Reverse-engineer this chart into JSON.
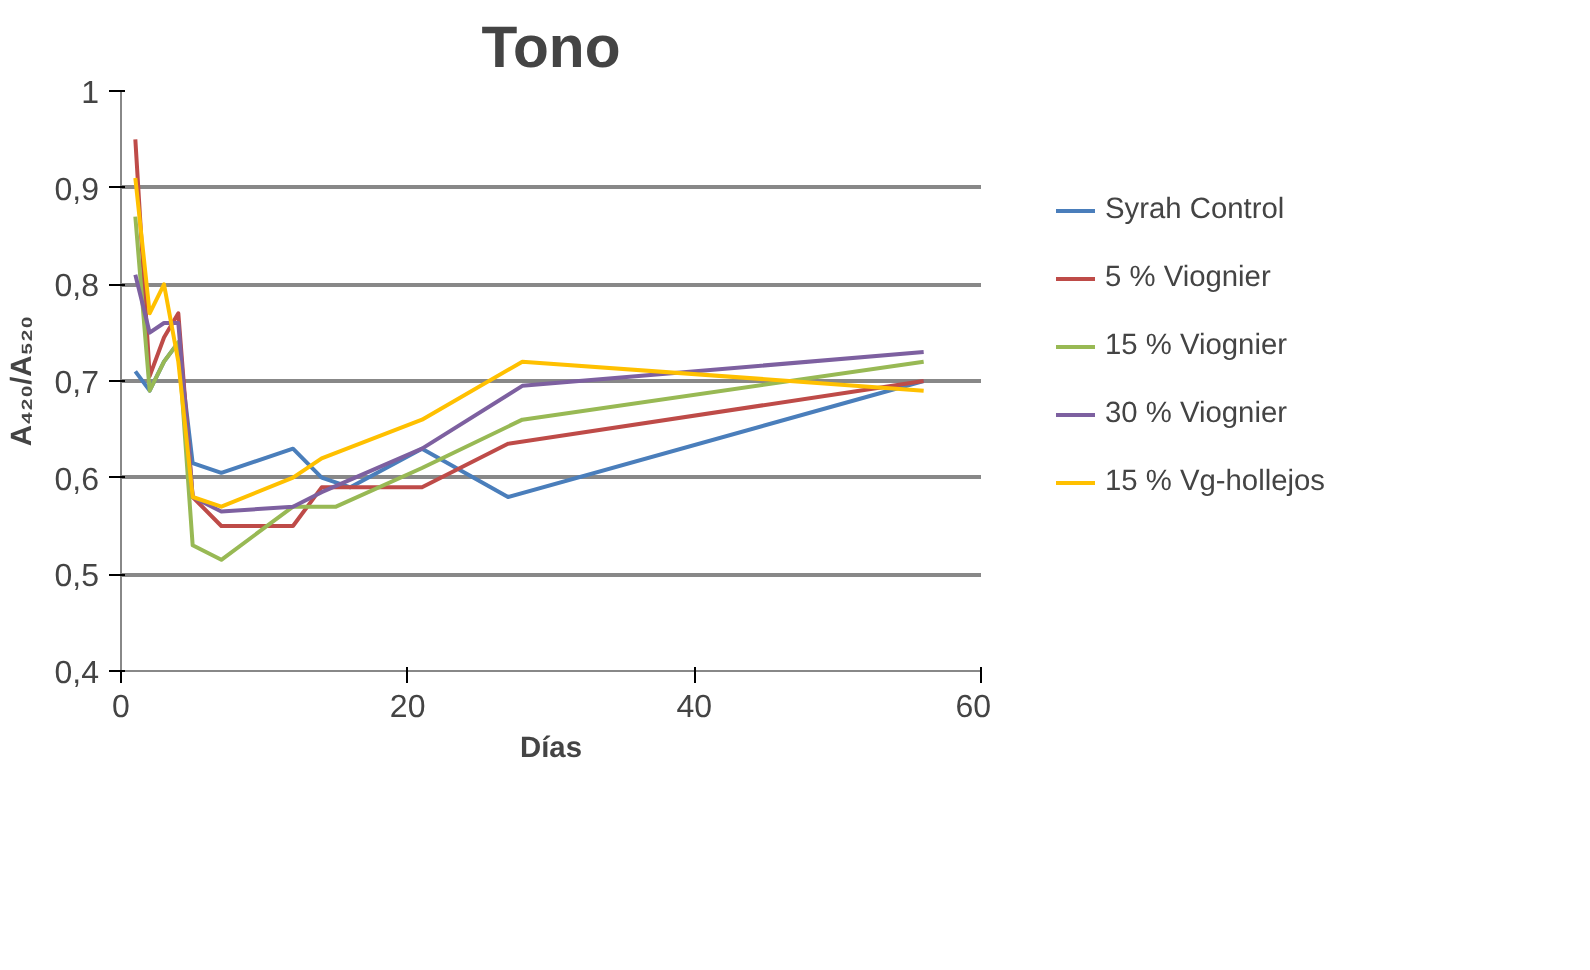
{
  "chart_data": {
    "type": "line",
    "title": "Tono",
    "xlabel": "Días",
    "ylabel": "A₄₂₀/A₅₂₀",
    "xlim": [
      0,
      60
    ],
    "xticks": [
      0,
      20,
      40,
      60
    ],
    "ylim": [
      0.4,
      1
    ],
    "yticks": [
      {
        "value": 0.4,
        "label": "0,4"
      },
      {
        "value": 0.5,
        "label": "0,5"
      },
      {
        "value": 0.6,
        "label": "0,6"
      },
      {
        "value": 0.7,
        "label": "0,7"
      },
      {
        "value": 0.8,
        "label": "0,8"
      },
      {
        "value": 0.9,
        "label": "0,9"
      },
      {
        "value": 1,
        "label": "1"
      }
    ],
    "grid": "y",
    "legend": "right",
    "marker": "none",
    "line_style": "solid",
    "series": [
      {
        "name": "Syrah Control",
        "color": "#4a7ebb",
        "x": [
          1,
          2,
          3,
          4,
          5,
          7,
          12,
          14,
          16,
          21,
          27,
          56
        ],
        "values": [
          0.71,
          0.69,
          0.72,
          0.74,
          0.615,
          0.605,
          0.63,
          0.6,
          0.59,
          0.63,
          0.58,
          0.7
        ]
      },
      {
        "name": "5 % Viognier",
        "color": "#be4b48",
        "x": [
          1,
          2,
          3,
          4,
          5,
          7,
          12,
          14,
          21,
          27,
          56
        ],
        "values": [
          0.95,
          0.705,
          0.745,
          0.77,
          0.58,
          0.55,
          0.55,
          0.59,
          0.59,
          0.635,
          0.7
        ]
      },
      {
        "name": "15 % Viognier",
        "color": "#98b954",
        "x": [
          1,
          2,
          3,
          4,
          5,
          7,
          12,
          15,
          21,
          28,
          56
        ],
        "values": [
          0.87,
          0.69,
          0.72,
          0.74,
          0.53,
          0.515,
          0.57,
          0.57,
          0.61,
          0.66,
          0.72
        ]
      },
      {
        "name": "30 % Viognier",
        "color": "#7d60a0",
        "x": [
          1,
          2,
          3,
          4,
          5,
          7,
          12,
          14,
          21,
          28,
          56
        ],
        "values": [
          0.81,
          0.75,
          0.76,
          0.76,
          0.58,
          0.565,
          0.57,
          0.585,
          0.63,
          0.695,
          0.73
        ]
      },
      {
        "name": "15 % Vg-hollejos",
        "color": "#ffc000",
        "x": [
          1,
          2,
          3,
          4,
          5,
          7,
          12,
          14,
          21,
          28,
          56
        ],
        "values": [
          0.91,
          0.77,
          0.8,
          0.72,
          0.58,
          0.57,
          0.6,
          0.62,
          0.66,
          0.72,
          0.69
        ]
      }
    ]
  }
}
